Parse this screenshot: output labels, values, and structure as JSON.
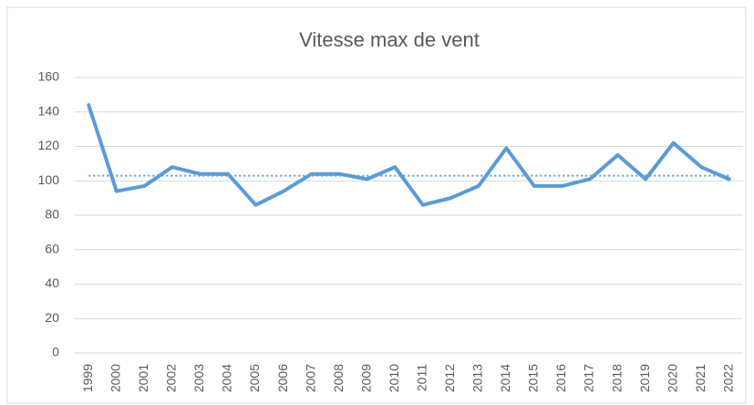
{
  "chart_data": {
    "type": "line",
    "title": "Vitesse max de vent",
    "categories": [
      "1999",
      "2000",
      "2001",
      "2002",
      "2003",
      "2004",
      "2005",
      "2006",
      "2007",
      "2008",
      "2009",
      "2010",
      "2011",
      "2012",
      "2013",
      "2014",
      "2015",
      "2016",
      "2017",
      "2018",
      "2019",
      "2020",
      "2021",
      "2022"
    ],
    "values": [
      144,
      94,
      97,
      108,
      104,
      104,
      86,
      94,
      104,
      104,
      101,
      108,
      86,
      90,
      97,
      119,
      97,
      97,
      101,
      115,
      101,
      122,
      108,
      101
    ],
    "color": "#5b9bd5",
    "trendline": {
      "value": 103,
      "color": "#5b9bd5",
      "style": "dotted"
    },
    "ylim": [
      0,
      160
    ],
    "yticks": [
      0,
      20,
      40,
      60,
      80,
      100,
      120,
      140,
      160
    ],
    "grid": true
  }
}
